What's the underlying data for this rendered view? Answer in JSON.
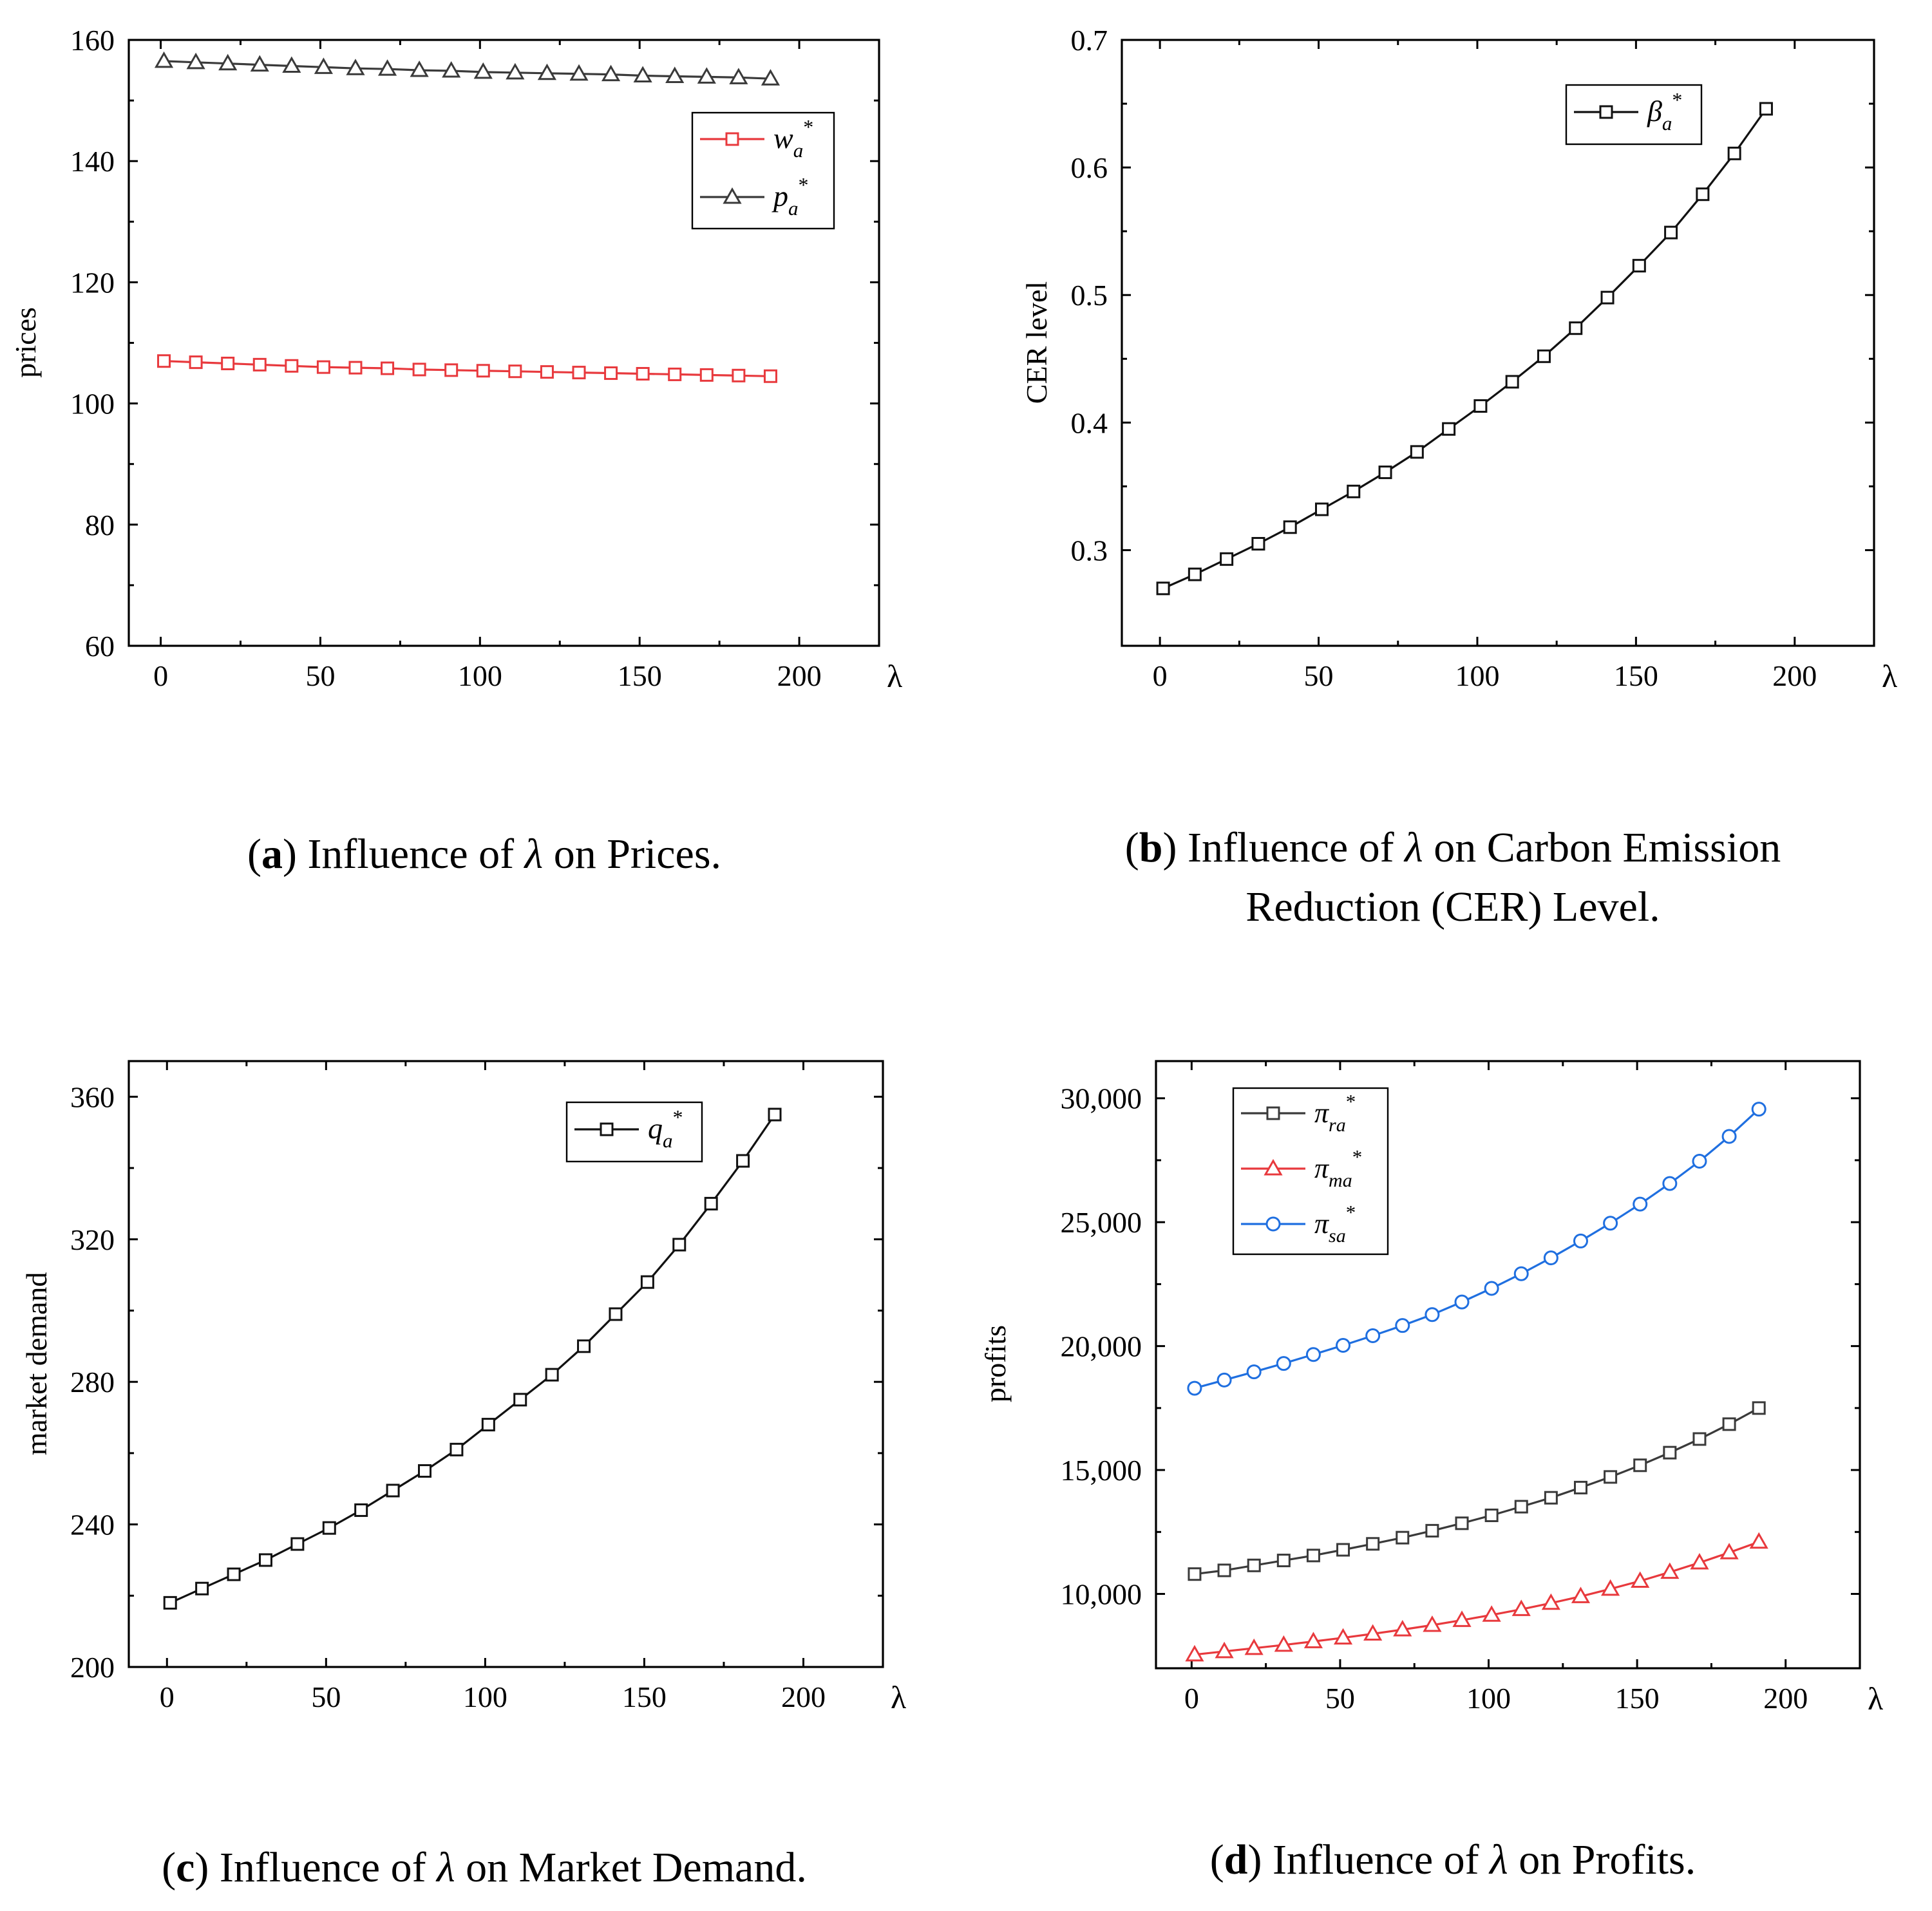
{
  "charts": [
    {
      "type": "line",
      "x_axis_symbol": "λ",
      "ylabel": "prices",
      "xlim": [
        -10,
        225
      ],
      "ylim": [
        60,
        160
      ],
      "xticks": [
        0,
        50,
        100,
        150,
        200
      ],
      "yticks": [
        60,
        80,
        100,
        120,
        140,
        160
      ],
      "ytick_labels": [
        "60",
        "80",
        "100",
        "120",
        "140",
        "160"
      ],
      "xtick_labels": [
        "0",
        "50",
        "100",
        "150",
        "200"
      ],
      "caption": {
        "letter": "a",
        "before": "Influence of ",
        "symbol": "λ",
        "after": " on Prices.",
        "line2": ""
      },
      "series": [
        {
          "name": "w",
          "sub": "a",
          "sup": "*",
          "marker": "square",
          "color": "#e8393d",
          "values": [
            107.0,
            106.8,
            106.6,
            106.4,
            106.2,
            106.0,
            105.9,
            105.8,
            105.6,
            105.5,
            105.4,
            105.3,
            105.2,
            105.1,
            105.0,
            104.9,
            104.8,
            104.7,
            104.6,
            104.5
          ]
        },
        {
          "name": "p",
          "sub": "a",
          "sup": "*",
          "marker": "triangle",
          "color": "#3a3a3a",
          "values": [
            156.5,
            156.3,
            156.1,
            155.9,
            155.7,
            155.5,
            155.3,
            155.2,
            155.0,
            154.9,
            154.7,
            154.6,
            154.5,
            154.4,
            154.3,
            154.1,
            154.0,
            153.9,
            153.8,
            153.6
          ]
        }
      ]
    },
    {
      "type": "line",
      "x_axis_symbol": "λ",
      "ylabel": "CER level",
      "xlim": [
        -12,
        225
      ],
      "ylim": [
        0.225,
        0.7
      ],
      "xticks": [
        0,
        50,
        100,
        150,
        200
      ],
      "yticks": [
        0.3,
        0.4,
        0.5,
        0.6,
        0.7
      ],
      "ytick_labels": [
        "0.3",
        "0.4",
        "0.5",
        "0.6",
        "0.7"
      ],
      "xtick_labels": [
        "0",
        "50",
        "100",
        "150",
        "200"
      ],
      "caption": {
        "letter": "b",
        "before": "Influence of ",
        "symbol": "λ",
        "after": " on Carbon Emission",
        "line2": "Reduction (CER) Level."
      },
      "series": [
        {
          "name": "β",
          "sub": "a",
          "sup": "*",
          "marker": "square",
          "color": "#111111",
          "values": [
            0.27,
            0.281,
            0.293,
            0.305,
            0.318,
            0.332,
            0.346,
            0.361,
            0.377,
            0.395,
            0.413,
            0.432,
            0.452,
            0.474,
            0.498,
            0.523,
            0.549,
            0.579,
            0.611,
            0.646
          ]
        }
      ]
    },
    {
      "type": "line",
      "x_axis_symbol": "λ",
      "ylabel": "market demand",
      "xlim": [
        -12,
        225
      ],
      "ylim": [
        200,
        370
      ],
      "xticks": [
        0,
        50,
        100,
        150,
        200
      ],
      "yticks": [
        200,
        240,
        280,
        320,
        360
      ],
      "ytick_labels": [
        "200",
        "240",
        "280",
        "320",
        "360"
      ],
      "xtick_labels": [
        "0",
        "50",
        "100",
        "150",
        "200"
      ],
      "caption": {
        "letter": "c",
        "before": "Influence of ",
        "symbol": "λ",
        "after": " on Market Demand.",
        "line2": ""
      },
      "series": [
        {
          "name": "q",
          "sub": "a",
          "sup": "*",
          "marker": "square",
          "color": "#111111",
          "values": [
            218,
            222,
            226,
            230,
            234.5,
            239,
            244,
            249.5,
            255,
            261,
            268,
            275,
            282,
            290,
            299,
            308,
            318.5,
            330,
            342,
            355
          ]
        }
      ]
    },
    {
      "type": "line",
      "x_axis_symbol": "λ",
      "ylabel": "profits",
      "xlim": [
        -12,
        225
      ],
      "ylim": [
        7000,
        31500
      ],
      "xticks": [
        0,
        50,
        100,
        150,
        200
      ],
      "yticks": [
        10000,
        15000,
        20000,
        25000,
        30000
      ],
      "ytick_labels": [
        "10,000",
        "15,000",
        "20,000",
        "25,000",
        "30,000"
      ],
      "xtick_labels": [
        "0",
        "50",
        "100",
        "150",
        "200"
      ],
      "caption": {
        "letter": "d",
        "before": "Influence of ",
        "symbol": "λ",
        "after": " on Profits.",
        "line2": ""
      },
      "series": [
        {
          "name": "π",
          "sub": "ra",
          "sup": "*",
          "marker": "square",
          "color": "#3a3a3a",
          "values": [
            10800,
            10950,
            11150,
            11350,
            11550,
            11780,
            12020,
            12270,
            12550,
            12850,
            13170,
            13520,
            13880,
            14290,
            14720,
            15190,
            15700,
            16250,
            16850,
            17500
          ]
        },
        {
          "name": "π",
          "sub": "ma",
          "sup": "*",
          "marker": "triangle",
          "color": "#e8393d",
          "values": [
            7550,
            7680,
            7810,
            7940,
            8080,
            8230,
            8390,
            8560,
            8740,
            8940,
            9150,
            9380,
            9630,
            9900,
            10200,
            10520,
            10880,
            11260,
            11670,
            12100
          ]
        },
        {
          "name": "π",
          "sub": "sa",
          "sup": "*",
          "marker": "circle",
          "color": "#1f6fe0",
          "values": [
            18300,
            18630,
            18960,
            19300,
            19660,
            20030,
            20420,
            20830,
            21270,
            21780,
            22330,
            22920,
            23560,
            24240,
            24960,
            25730,
            26560,
            27460,
            28460,
            29560
          ]
        }
      ]
    }
  ],
  "chart_data": [
    {
      "type": "line",
      "title": "",
      "xlabel": "λ",
      "ylabel": "prices",
      "x": [
        1,
        11,
        21,
        31,
        41,
        51,
        61,
        71,
        81,
        91,
        101,
        111,
        121,
        131,
        141,
        151,
        161,
        171,
        181,
        191
      ],
      "series": [
        {
          "name": "w_a*",
          "values": [
            107.0,
            106.8,
            106.6,
            106.4,
            106.2,
            106.0,
            105.9,
            105.8,
            105.6,
            105.5,
            105.4,
            105.3,
            105.2,
            105.1,
            105.0,
            104.9,
            104.8,
            104.7,
            104.6,
            104.5
          ]
        },
        {
          "name": "p_a*",
          "values": [
            156.5,
            156.3,
            156.1,
            155.9,
            155.7,
            155.5,
            155.3,
            155.2,
            155.0,
            154.9,
            154.7,
            154.6,
            154.5,
            154.4,
            154.3,
            154.1,
            154.0,
            153.9,
            153.8,
            153.6
          ]
        }
      ],
      "xlim": [
        -10,
        225
      ],
      "ylim": [
        60,
        160
      ],
      "legend": "top-right"
    },
    {
      "type": "line",
      "title": "",
      "xlabel": "λ",
      "ylabel": "CER level",
      "x": [
        1,
        11,
        21,
        31,
        41,
        51,
        61,
        71,
        81,
        91,
        101,
        111,
        121,
        131,
        141,
        151,
        161,
        171,
        181,
        191
      ],
      "series": [
        {
          "name": "β_a*",
          "values": [
            0.27,
            0.281,
            0.293,
            0.305,
            0.318,
            0.332,
            0.346,
            0.361,
            0.377,
            0.395,
            0.413,
            0.432,
            0.452,
            0.474,
            0.498,
            0.523,
            0.549,
            0.579,
            0.611,
            0.646
          ]
        }
      ],
      "xlim": [
        -12,
        225
      ],
      "ylim": [
        0.225,
        0.7
      ],
      "legend": "top-right"
    },
    {
      "type": "line",
      "title": "",
      "xlabel": "λ",
      "ylabel": "market demand",
      "x": [
        1,
        11,
        21,
        31,
        41,
        51,
        61,
        71,
        81,
        91,
        101,
        111,
        121,
        131,
        141,
        151,
        161,
        171,
        181,
        191
      ],
      "series": [
        {
          "name": "q_a*",
          "values": [
            218,
            222,
            226,
            230,
            234.5,
            239,
            244,
            249.5,
            255,
            261,
            268,
            275,
            282,
            290,
            299,
            308,
            318.5,
            330,
            342,
            355
          ]
        }
      ],
      "xlim": [
        -12,
        225
      ],
      "ylim": [
        200,
        370
      ],
      "legend": "top-right"
    },
    {
      "type": "line",
      "title": "",
      "xlabel": "λ",
      "ylabel": "profits",
      "x": [
        1,
        11,
        21,
        31,
        41,
        51,
        61,
        71,
        81,
        91,
        101,
        111,
        121,
        131,
        141,
        151,
        161,
        171,
        181,
        191
      ],
      "series": [
        {
          "name": "π_ra*",
          "values": [
            10800,
            10950,
            11150,
            11350,
            11550,
            11780,
            12020,
            12270,
            12550,
            12850,
            13170,
            13520,
            13880,
            14290,
            14720,
            15190,
            15700,
            16250,
            16850,
            17500
          ]
        },
        {
          "name": "π_ma*",
          "values": [
            7550,
            7680,
            7810,
            7940,
            8080,
            8230,
            8390,
            8560,
            8740,
            8940,
            9150,
            9380,
            9630,
            9900,
            10200,
            10520,
            10880,
            11260,
            11670,
            12100
          ]
        },
        {
          "name": "π_sa*",
          "values": [
            18300,
            18630,
            18960,
            19300,
            19660,
            20030,
            20420,
            20830,
            21270,
            21780,
            22330,
            22920,
            23560,
            24240,
            24960,
            25730,
            26560,
            27460,
            28460,
            29560
          ]
        }
      ],
      "xlim": [
        -12,
        225
      ],
      "ylim": [
        7000,
        31500
      ],
      "legend": "top-left"
    }
  ]
}
